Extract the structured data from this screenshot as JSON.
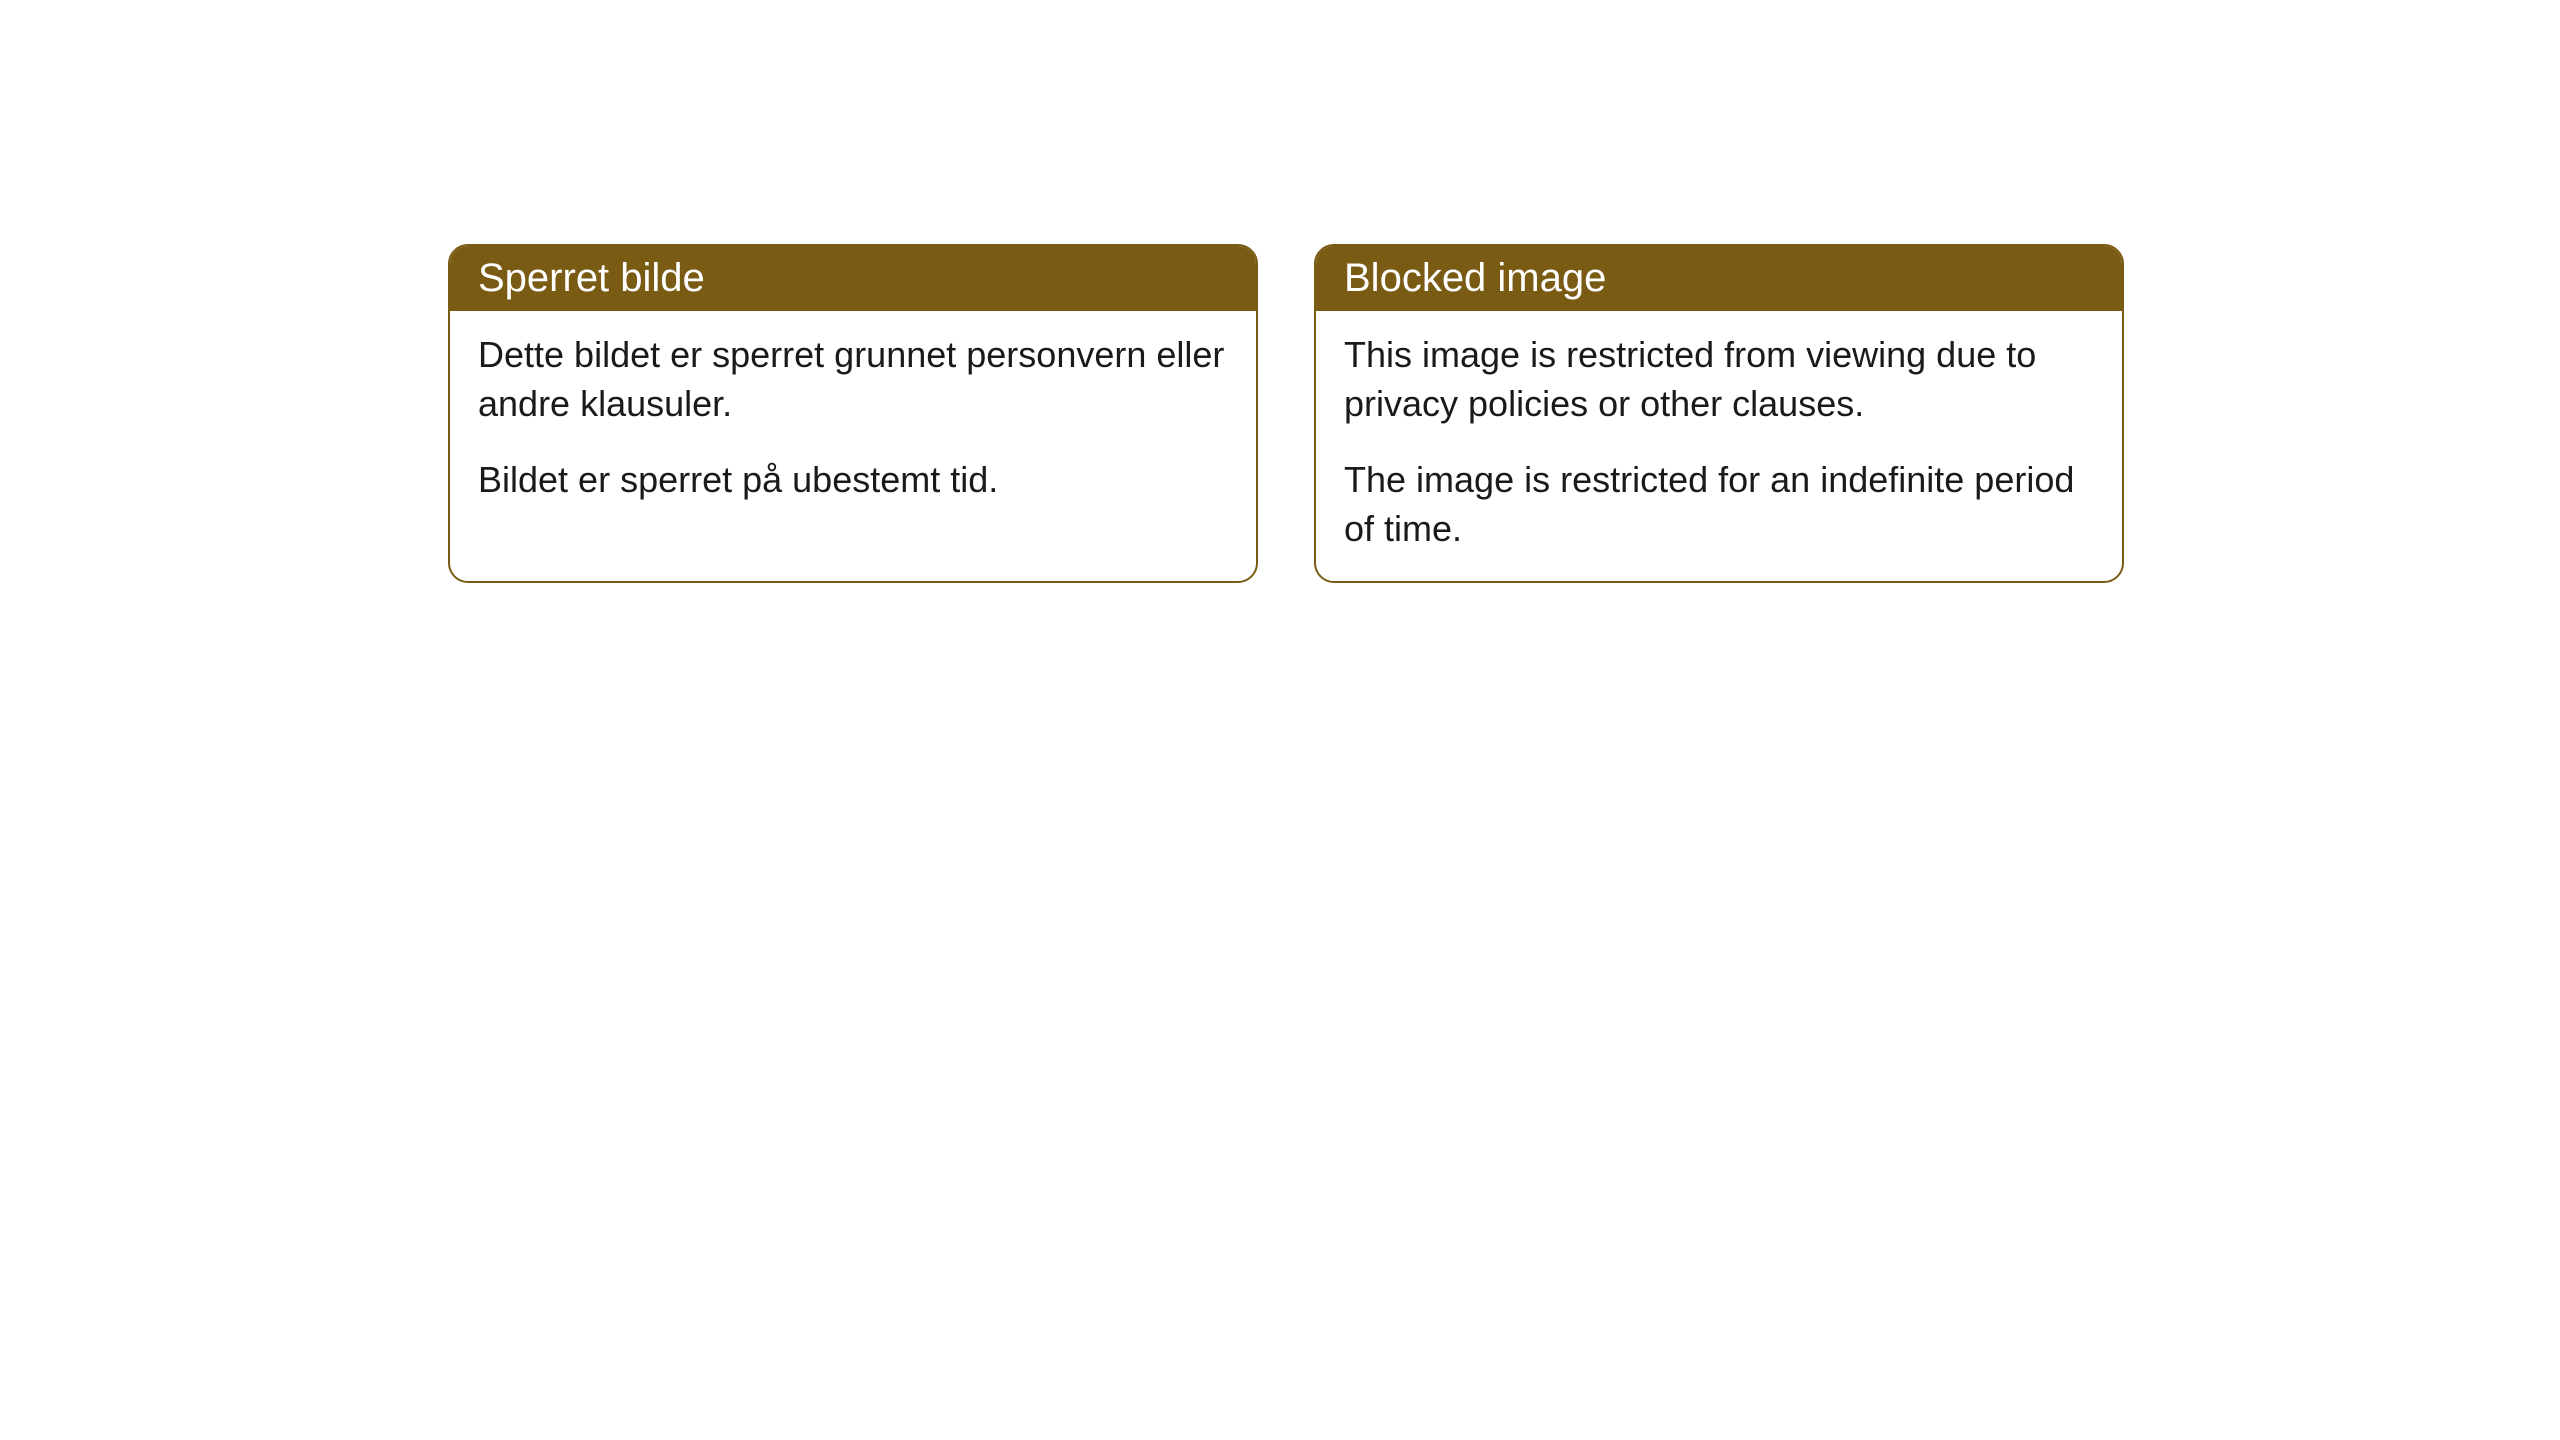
{
  "cards": [
    {
      "title": "Sperret bilde",
      "paragraph1": "Dette bildet er sperret grunnet personvern eller andre klausuler.",
      "paragraph2": "Bildet er sperret på ubestemt tid."
    },
    {
      "title": "Blocked image",
      "paragraph1": "This image is restricted from viewing due to privacy policies or other clauses.",
      "paragraph2": "The image is restricted for an indefinite period of time."
    }
  ],
  "styling": {
    "header_background": "#7a5b14",
    "header_text_color": "#ffffff",
    "border_color": "#7a5b14",
    "body_background": "#ffffff",
    "body_text_color": "#1a1a1a",
    "border_radius": 20,
    "header_fontsize": 40,
    "body_fontsize": 36
  }
}
